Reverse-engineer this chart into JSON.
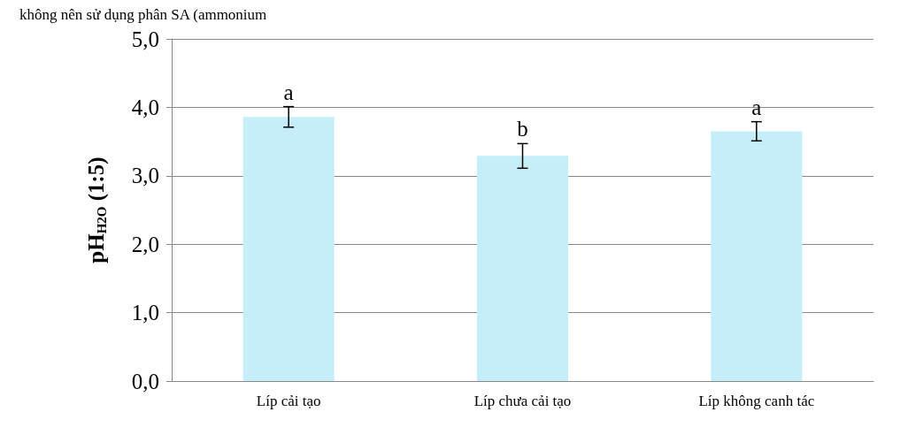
{
  "chart_data": {
    "type": "bar",
    "ylabel": "pH$_{H2O}$ (1:5)",
    "categories": [
      "Líp cải tạo",
      "Líp chưa cải tạo",
      "Líp không canh tác"
    ],
    "values": [
      3.86,
      3.29,
      3.65
    ],
    "errors": [
      0.15,
      0.18,
      0.14
    ],
    "color": "#c5eefa",
    "ylim": [
      0,
      5
    ],
    "yticks": [
      {
        "value": 0,
        "label": "0,0"
      },
      {
        "value": 1,
        "label": "1,0"
      },
      {
        "value": 2,
        "label": "2,0"
      },
      {
        "value": 3,
        "label": "3,0"
      },
      {
        "value": 4,
        "label": "4,0"
      },
      {
        "value": 5,
        "label": "5,0"
      }
    ],
    "grid": "y",
    "annotations": [
      "không nên sử dụng phân SA (ammonium",
      {
        "text": "a",
        "x": "Líp cải tạo",
        "y": 4.01
      },
      {
        "text": "b",
        "x": "Líp chưa cải tạo",
        "y": 3.47
      },
      {
        "text": "a",
        "x": "Líp không canh tác",
        "y": 3.79
      }
    ]
  }
}
